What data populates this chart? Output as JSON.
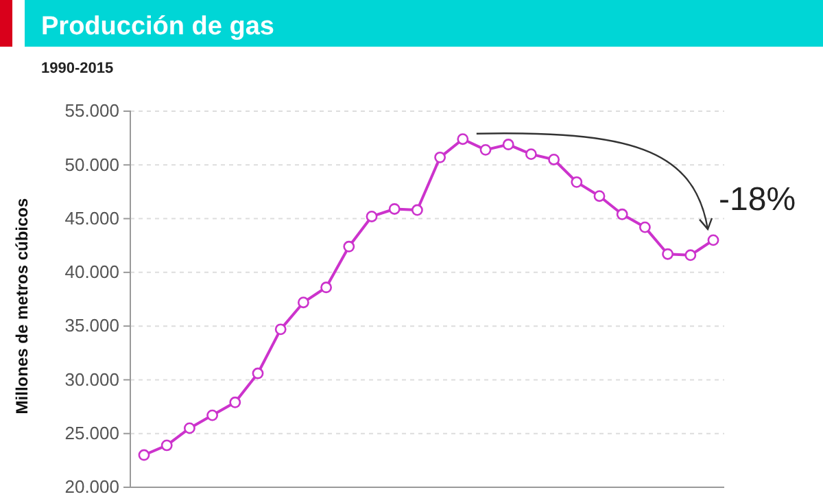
{
  "chart_data": {
    "type": "line",
    "title": "Producción de gas",
    "subtitle": "1990-2015",
    "ylabel": "Millones de metros cúbicos",
    "categories": [
      null,
      null,
      null,
      null,
      null,
      null,
      null,
      null,
      null,
      null,
      null,
      null,
      null,
      null,
      null,
      null,
      null,
      null,
      null,
      null,
      null,
      null,
      null,
      null,
      null,
      null
    ],
    "series": [
      {
        "color": "#cc33cc",
        "values": [
          23000,
          23900,
          25500,
          26700,
          27900,
          30600,
          34700,
          37200,
          38600,
          42400,
          45200,
          45900,
          45800,
          50700,
          52400,
          51400,
          51900,
          51000,
          50500,
          48400,
          47100,
          45400,
          44200,
          41700,
          41600,
          43000
        ]
      }
    ],
    "ylim": [
      20000,
      55000
    ],
    "yticks": [
      {
        "value": 20000,
        "label": "20.000"
      },
      {
        "value": 25000,
        "label": "25.000"
      },
      {
        "value": 30000,
        "label": "30.000"
      },
      {
        "value": 35000,
        "label": "35.000"
      },
      {
        "value": 40000,
        "label": "40.000"
      },
      {
        "value": 45000,
        "label": "45.000"
      },
      {
        "value": 50000,
        "label": "50.000"
      },
      {
        "value": 55000,
        "label": "55.000"
      }
    ],
    "grid": "y",
    "marker": "circle",
    "line_style": "solid",
    "annotations": [
      "-18%"
    ]
  }
}
